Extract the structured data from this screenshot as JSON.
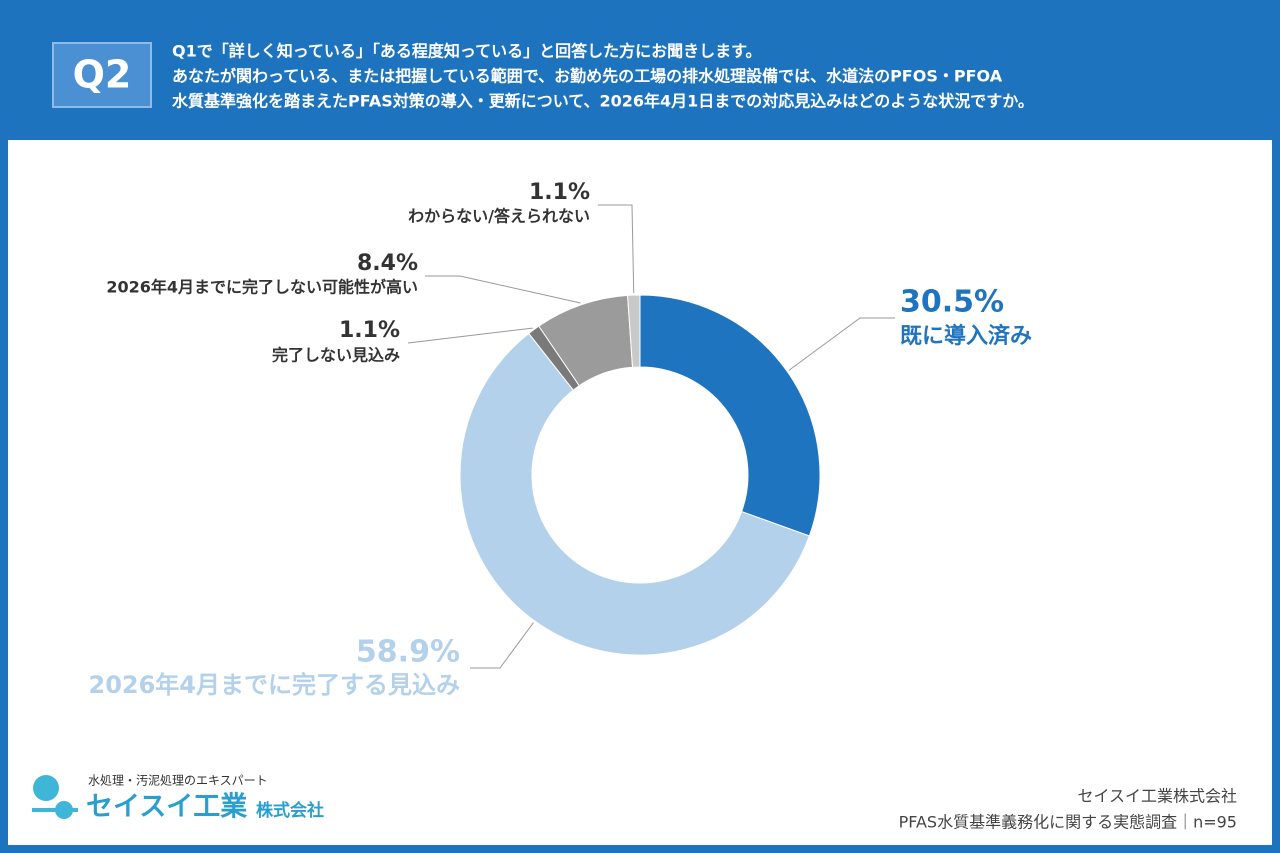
{
  "header": {
    "badge": "Q2",
    "lines": [
      "Q1で「詳しく知っている」「ある程度知っている」と回答した方にお聞きします。",
      "あなたが関わっている、または把握している範囲で、お勤め先の工場の排水処理設備では、水道法のPFOS・PFOA",
      "水質基準強化を踏まえたPFAS対策の導入・更新について、2026年4月1日までの対応見込みはどのような状況ですか。"
    ]
  },
  "chart_data": {
    "type": "pie",
    "categories": [
      "既に導入済み",
      "2026年4月までに完了する見込み",
      "完了しない見込み",
      "2026年4月までに完了しない可能性が高い",
      "わからない/答えられない"
    ],
    "values": [
      30.5,
      58.9,
      1.1,
      8.4,
      1.1
    ],
    "value_labels": [
      "30.5%",
      "58.9%",
      "1.1%",
      "8.4%",
      "1.1%"
    ],
    "colors": [
      "#1f74bf",
      "#b3d1ea",
      "#7a7a7a",
      "#9b9b9b",
      "#c9c9c9"
    ]
  },
  "footer": {
    "tagline": "水処理・汚泥処理のエキスパート",
    "logo_name": "セイスイ工業",
    "logo_suffix": "株式会社",
    "company": "セイスイ工業株式会社",
    "survey": "PFAS水質基準義務化に関する実態調査｜n=95"
  }
}
